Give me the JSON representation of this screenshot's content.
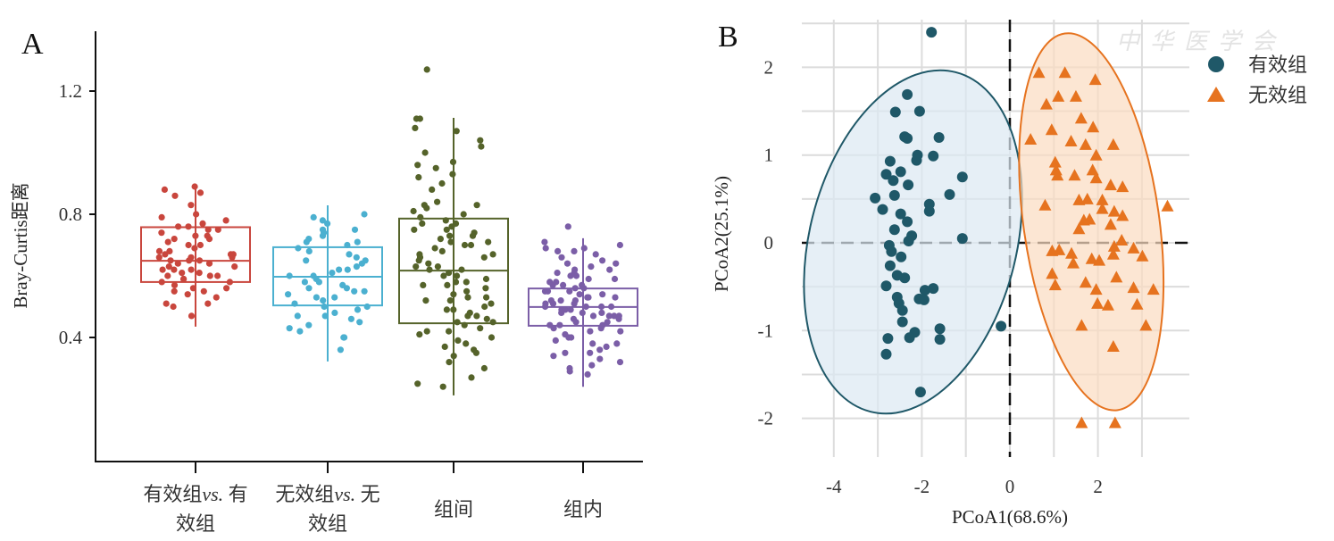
{
  "watermark": "中华医学会",
  "chart_data": [
    {
      "type": "box",
      "panel_label": "A",
      "ylabel": "Bray-Curtis距离",
      "xlabel": "",
      "ylim": [
        0.0,
        1.4
      ],
      "yticks": [
        0.4,
        0.8,
        1.2
      ],
      "ytick_labels": [
        "0.4",
        "0.8",
        "1.2"
      ],
      "grid": false,
      "categories": [
        {
          "line1_pre": "有效组",
          "line1_italic": "vs.",
          "line1_post": " 有",
          "line2": "效组"
        },
        {
          "line1_pre": "无效组",
          "line1_italic": "vs.",
          "line1_post": " 无",
          "line2": "效组"
        },
        {
          "line1_pre": "组间",
          "line1_italic": "",
          "line1_post": "",
          "line2": ""
        },
        {
          "line1_pre": "组内",
          "line1_italic": "",
          "line1_post": "",
          "line2": ""
        }
      ],
      "series": [
        {
          "name": "有效组vs.有效组",
          "color": "#c9463d",
          "whisker_low": 0.435,
          "q1": 0.58,
          "median": 0.649,
          "q3": 0.758,
          "whisker_high": 0.884,
          "points": [
            0.89,
            0.87,
            0.88,
            0.86,
            0.83,
            0.8,
            0.79,
            0.78,
            0.77,
            0.76,
            0.76,
            0.75,
            0.75,
            0.74,
            0.73,
            0.72,
            0.72,
            0.71,
            0.7,
            0.69,
            0.68,
            0.68,
            0.67,
            0.67,
            0.67,
            0.66,
            0.66,
            0.65,
            0.65,
            0.65,
            0.64,
            0.64,
            0.63,
            0.63,
            0.62,
            0.62,
            0.61,
            0.61,
            0.6,
            0.6,
            0.59,
            0.59,
            0.58,
            0.58,
            0.57,
            0.56,
            0.56,
            0.55,
            0.55,
            0.54,
            0.53,
            0.51,
            0.51,
            0.5,
            0.47,
            0.62,
            0.66,
            0.7,
            0.6,
            0.73
          ]
        },
        {
          "name": "无效组vs.无效组",
          "color": "#4bb0d0",
          "whisker_low": 0.322,
          "q1": 0.504,
          "median": 0.597,
          "q3": 0.693,
          "whisker_high": 0.829,
          "points": [
            0.8,
            0.79,
            0.78,
            0.77,
            0.75,
            0.75,
            0.74,
            0.73,
            0.72,
            0.71,
            0.7,
            0.69,
            0.68,
            0.67,
            0.66,
            0.65,
            0.64,
            0.63,
            0.62,
            0.62,
            0.61,
            0.6,
            0.6,
            0.59,
            0.58,
            0.58,
            0.57,
            0.56,
            0.56,
            0.55,
            0.54,
            0.53,
            0.53,
            0.52,
            0.51,
            0.5,
            0.5,
            0.49,
            0.48,
            0.47,
            0.47,
            0.46,
            0.45,
            0.44,
            0.43,
            0.42,
            0.4,
            0.4,
            0.36,
            0.71,
            0.65,
            0.55
          ]
        },
        {
          "name": "组间",
          "color": "#55632a",
          "whisker_low": 0.212,
          "q1": 0.446,
          "median": 0.617,
          "q3": 0.786,
          "whisker_high": 1.113,
          "points": [
            1.27,
            1.11,
            1.11,
            1.08,
            1.07,
            1.04,
            1.02,
            1.0,
            0.97,
            0.96,
            0.95,
            0.93,
            0.92,
            0.9,
            0.88,
            0.84,
            0.83,
            0.83,
            0.82,
            0.81,
            0.8,
            0.79,
            0.78,
            0.77,
            0.76,
            0.75,
            0.75,
            0.74,
            0.73,
            0.73,
            0.72,
            0.71,
            0.7,
            0.7,
            0.69,
            0.68,
            0.67,
            0.66,
            0.66,
            0.65,
            0.64,
            0.63,
            0.63,
            0.62,
            0.61,
            0.6,
            0.6,
            0.59,
            0.58,
            0.57,
            0.57,
            0.56,
            0.55,
            0.54,
            0.53,
            0.53,
            0.52,
            0.51,
            0.5,
            0.49,
            0.49,
            0.48,
            0.47,
            0.46,
            0.45,
            0.45,
            0.44,
            0.43,
            0.42,
            0.41,
            0.4,
            0.39,
            0.38,
            0.37,
            0.36,
            0.35,
            0.34,
            0.32,
            0.3,
            0.27,
            0.25,
            0.24,
            0.71,
            0.67,
            0.58,
            0.52,
            0.47,
            0.42,
            0.62,
            0.77
          ]
        },
        {
          "name": "组内",
          "color": "#7b5ea7",
          "whisker_low": 0.24,
          "q1": 0.438,
          "median": 0.499,
          "q3": 0.559,
          "whisker_high": 0.722,
          "points": [
            0.76,
            0.71,
            0.7,
            0.69,
            0.69,
            0.68,
            0.68,
            0.67,
            0.66,
            0.65,
            0.64,
            0.64,
            0.63,
            0.62,
            0.62,
            0.61,
            0.6,
            0.6,
            0.59,
            0.59,
            0.58,
            0.58,
            0.57,
            0.57,
            0.56,
            0.56,
            0.55,
            0.55,
            0.55,
            0.54,
            0.54,
            0.53,
            0.53,
            0.52,
            0.52,
            0.52,
            0.51,
            0.51,
            0.51,
            0.5,
            0.5,
            0.5,
            0.5,
            0.49,
            0.49,
            0.49,
            0.48,
            0.48,
            0.48,
            0.47,
            0.47,
            0.47,
            0.46,
            0.46,
            0.45,
            0.45,
            0.44,
            0.44,
            0.43,
            0.43,
            0.42,
            0.42,
            0.41,
            0.4,
            0.4,
            0.39,
            0.38,
            0.38,
            0.37,
            0.36,
            0.35,
            0.35,
            0.34,
            0.33,
            0.32,
            0.31,
            0.3,
            0.29,
            0.28,
            0.53,
            0.57,
            0.61,
            0.47,
            0.44
          ]
        }
      ]
    },
    {
      "type": "scatter",
      "panel_label": "B",
      "xlabel": "PCoA1(68.6%)",
      "ylabel": "PCoA2(25.1%)",
      "xlim": [
        -4.6,
        4.0
      ],
      "ylim": [
        -2.4,
        2.55
      ],
      "xticks": [
        -4,
        -2,
        0,
        2
      ],
      "xtick_labels": [
        "-4",
        "-2",
        "0",
        "2"
      ],
      "yticks": [
        2,
        1,
        0,
        -1,
        -2
      ],
      "ytick_labels": [
        "2",
        "1",
        "0",
        "-1",
        "-2"
      ],
      "grid": true,
      "legend_position": "top-right",
      "series": [
        {
          "name": "有效组",
          "marker": "circle",
          "color": "#1f5868",
          "ellipse_fill": "#dbe8f2",
          "ellipse_center": [
            -2.2,
            0.01
          ],
          "points": [
            [
              -1.78,
              2.4
            ],
            [
              -2.33,
              1.69
            ],
            [
              -2.6,
              1.49
            ],
            [
              -2.05,
              1.5
            ],
            [
              -2.39,
              1.21
            ],
            [
              -2.33,
              1.19
            ],
            [
              -1.61,
              1.2
            ],
            [
              -2.1,
              1.0
            ],
            [
              -2.12,
              0.94
            ],
            [
              -1.74,
              0.99
            ],
            [
              -2.72,
              0.93
            ],
            [
              -2.81,
              0.78
            ],
            [
              -2.48,
              0.81
            ],
            [
              -2.65,
              0.71
            ],
            [
              -2.31,
              0.66
            ],
            [
              -1.08,
              0.75
            ],
            [
              -1.37,
              0.55
            ],
            [
              -3.06,
              0.51
            ],
            [
              -2.62,
              0.54
            ],
            [
              -1.83,
              0.44
            ],
            [
              -1.83,
              0.36
            ],
            [
              -2.89,
              0.38
            ],
            [
              -2.48,
              0.33
            ],
            [
              -2.33,
              0.24
            ],
            [
              -2.62,
              0.15
            ],
            [
              -2.23,
              0.08
            ],
            [
              -2.3,
              0.02
            ],
            [
              -1.08,
              0.05
            ],
            [
              -2.74,
              -0.03
            ],
            [
              -2.69,
              -0.1
            ],
            [
              -2.47,
              -0.16
            ],
            [
              -2.72,
              -0.26
            ],
            [
              -2.56,
              -0.37
            ],
            [
              -2.39,
              -0.4
            ],
            [
              -2.81,
              -0.49
            ],
            [
              -1.74,
              -0.52
            ],
            [
              -1.93,
              -0.54
            ],
            [
              -2.06,
              -0.64
            ],
            [
              -1.95,
              -0.65
            ],
            [
              -2.56,
              -0.62
            ],
            [
              -2.52,
              -0.69
            ],
            [
              -2.44,
              -0.77
            ],
            [
              -2.44,
              -0.9
            ],
            [
              -0.2,
              -0.95
            ],
            [
              -1.59,
              -0.98
            ],
            [
              -2.16,
              -1.02
            ],
            [
              -2.28,
              -1.08
            ],
            [
              -1.59,
              -1.1
            ],
            [
              -2.77,
              -1.09
            ],
            [
              -2.81,
              -1.27
            ],
            [
              -2.03,
              -1.7
            ]
          ]
        },
        {
          "name": "无效组",
          "marker": "triangle",
          "color": "#e6731f",
          "ellipse_fill": "#fbdcc0",
          "ellipse_center": [
            1.85,
            0.24
          ],
          "points": [
            [
              0.66,
              1.94
            ],
            [
              1.25,
              1.94
            ],
            [
              1.94,
              1.86
            ],
            [
              1.1,
              1.67
            ],
            [
              1.5,
              1.67
            ],
            [
              0.83,
              1.58
            ],
            [
              1.62,
              1.42
            ],
            [
              1.89,
              1.32
            ],
            [
              0.95,
              1.29
            ],
            [
              0.47,
              1.18
            ],
            [
              1.39,
              1.16
            ],
            [
              1.72,
              1.12
            ],
            [
              2.35,
              1.12
            ],
            [
              1.96,
              1.0
            ],
            [
              1.03,
              0.92
            ],
            [
              1.05,
              0.83
            ],
            [
              1.08,
              0.77
            ],
            [
              1.47,
              0.77
            ],
            [
              1.88,
              0.83
            ],
            [
              1.96,
              0.74
            ],
            [
              2.29,
              0.66
            ],
            [
              2.56,
              0.64
            ],
            [
              0.8,
              0.43
            ],
            [
              1.57,
              0.49
            ],
            [
              1.76,
              0.5
            ],
            [
              2.1,
              0.49
            ],
            [
              2.1,
              0.39
            ],
            [
              2.37,
              0.36
            ],
            [
              2.56,
              0.31
            ],
            [
              3.58,
              0.42
            ],
            [
              1.68,
              0.26
            ],
            [
              1.81,
              0.27
            ],
            [
              1.57,
              0.16
            ],
            [
              2.29,
              0.21
            ],
            [
              2.54,
              0.03
            ],
            [
              2.37,
              -0.04
            ],
            [
              2.35,
              -0.13
            ],
            [
              0.96,
              -0.09
            ],
            [
              1.12,
              -0.08
            ],
            [
              1.4,
              -0.12
            ],
            [
              1.44,
              -0.23
            ],
            [
              1.86,
              -0.18
            ],
            [
              2.03,
              -0.2
            ],
            [
              2.81,
              -0.06
            ],
            [
              3.01,
              -0.15
            ],
            [
              0.96,
              -0.35
            ],
            [
              1.03,
              -0.48
            ],
            [
              1.72,
              -0.45
            ],
            [
              1.96,
              -0.53
            ],
            [
              2.42,
              -0.39
            ],
            [
              2.81,
              -0.51
            ],
            [
              3.26,
              -0.53
            ],
            [
              1.99,
              -0.69
            ],
            [
              2.23,
              -0.71
            ],
            [
              2.89,
              -0.7
            ],
            [
              1.63,
              -0.94
            ],
            [
              3.09,
              -0.94
            ],
            [
              2.35,
              -1.18
            ],
            [
              1.63,
              -2.05
            ],
            [
              2.39,
              -2.05
            ]
          ]
        }
      ]
    }
  ]
}
